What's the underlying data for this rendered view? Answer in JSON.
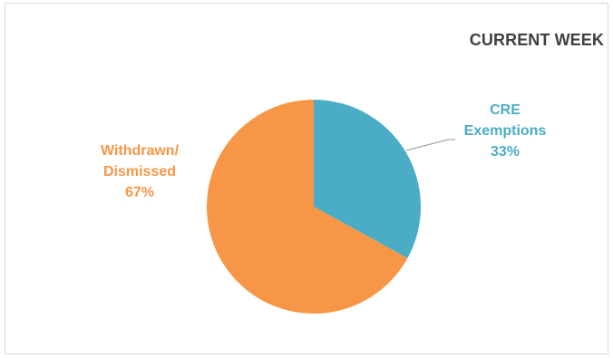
{
  "chart_data": {
    "type": "pie",
    "title": "CURRENT WEEK",
    "slices": [
      {
        "label_lines": [
          "CRE",
          "Exemptions"
        ],
        "percent_label": "33%",
        "value": 33,
        "color": "#4bacc6"
      },
      {
        "label_lines": [
          "Withdrawn/",
          "Dismissed"
        ],
        "percent_label": "67%",
        "value": 67,
        "color": "#f79646"
      }
    ],
    "start_angle_deg": 0,
    "direction": "clockwise",
    "legend": "none",
    "leader_line_color": "#a6a6a6"
  }
}
